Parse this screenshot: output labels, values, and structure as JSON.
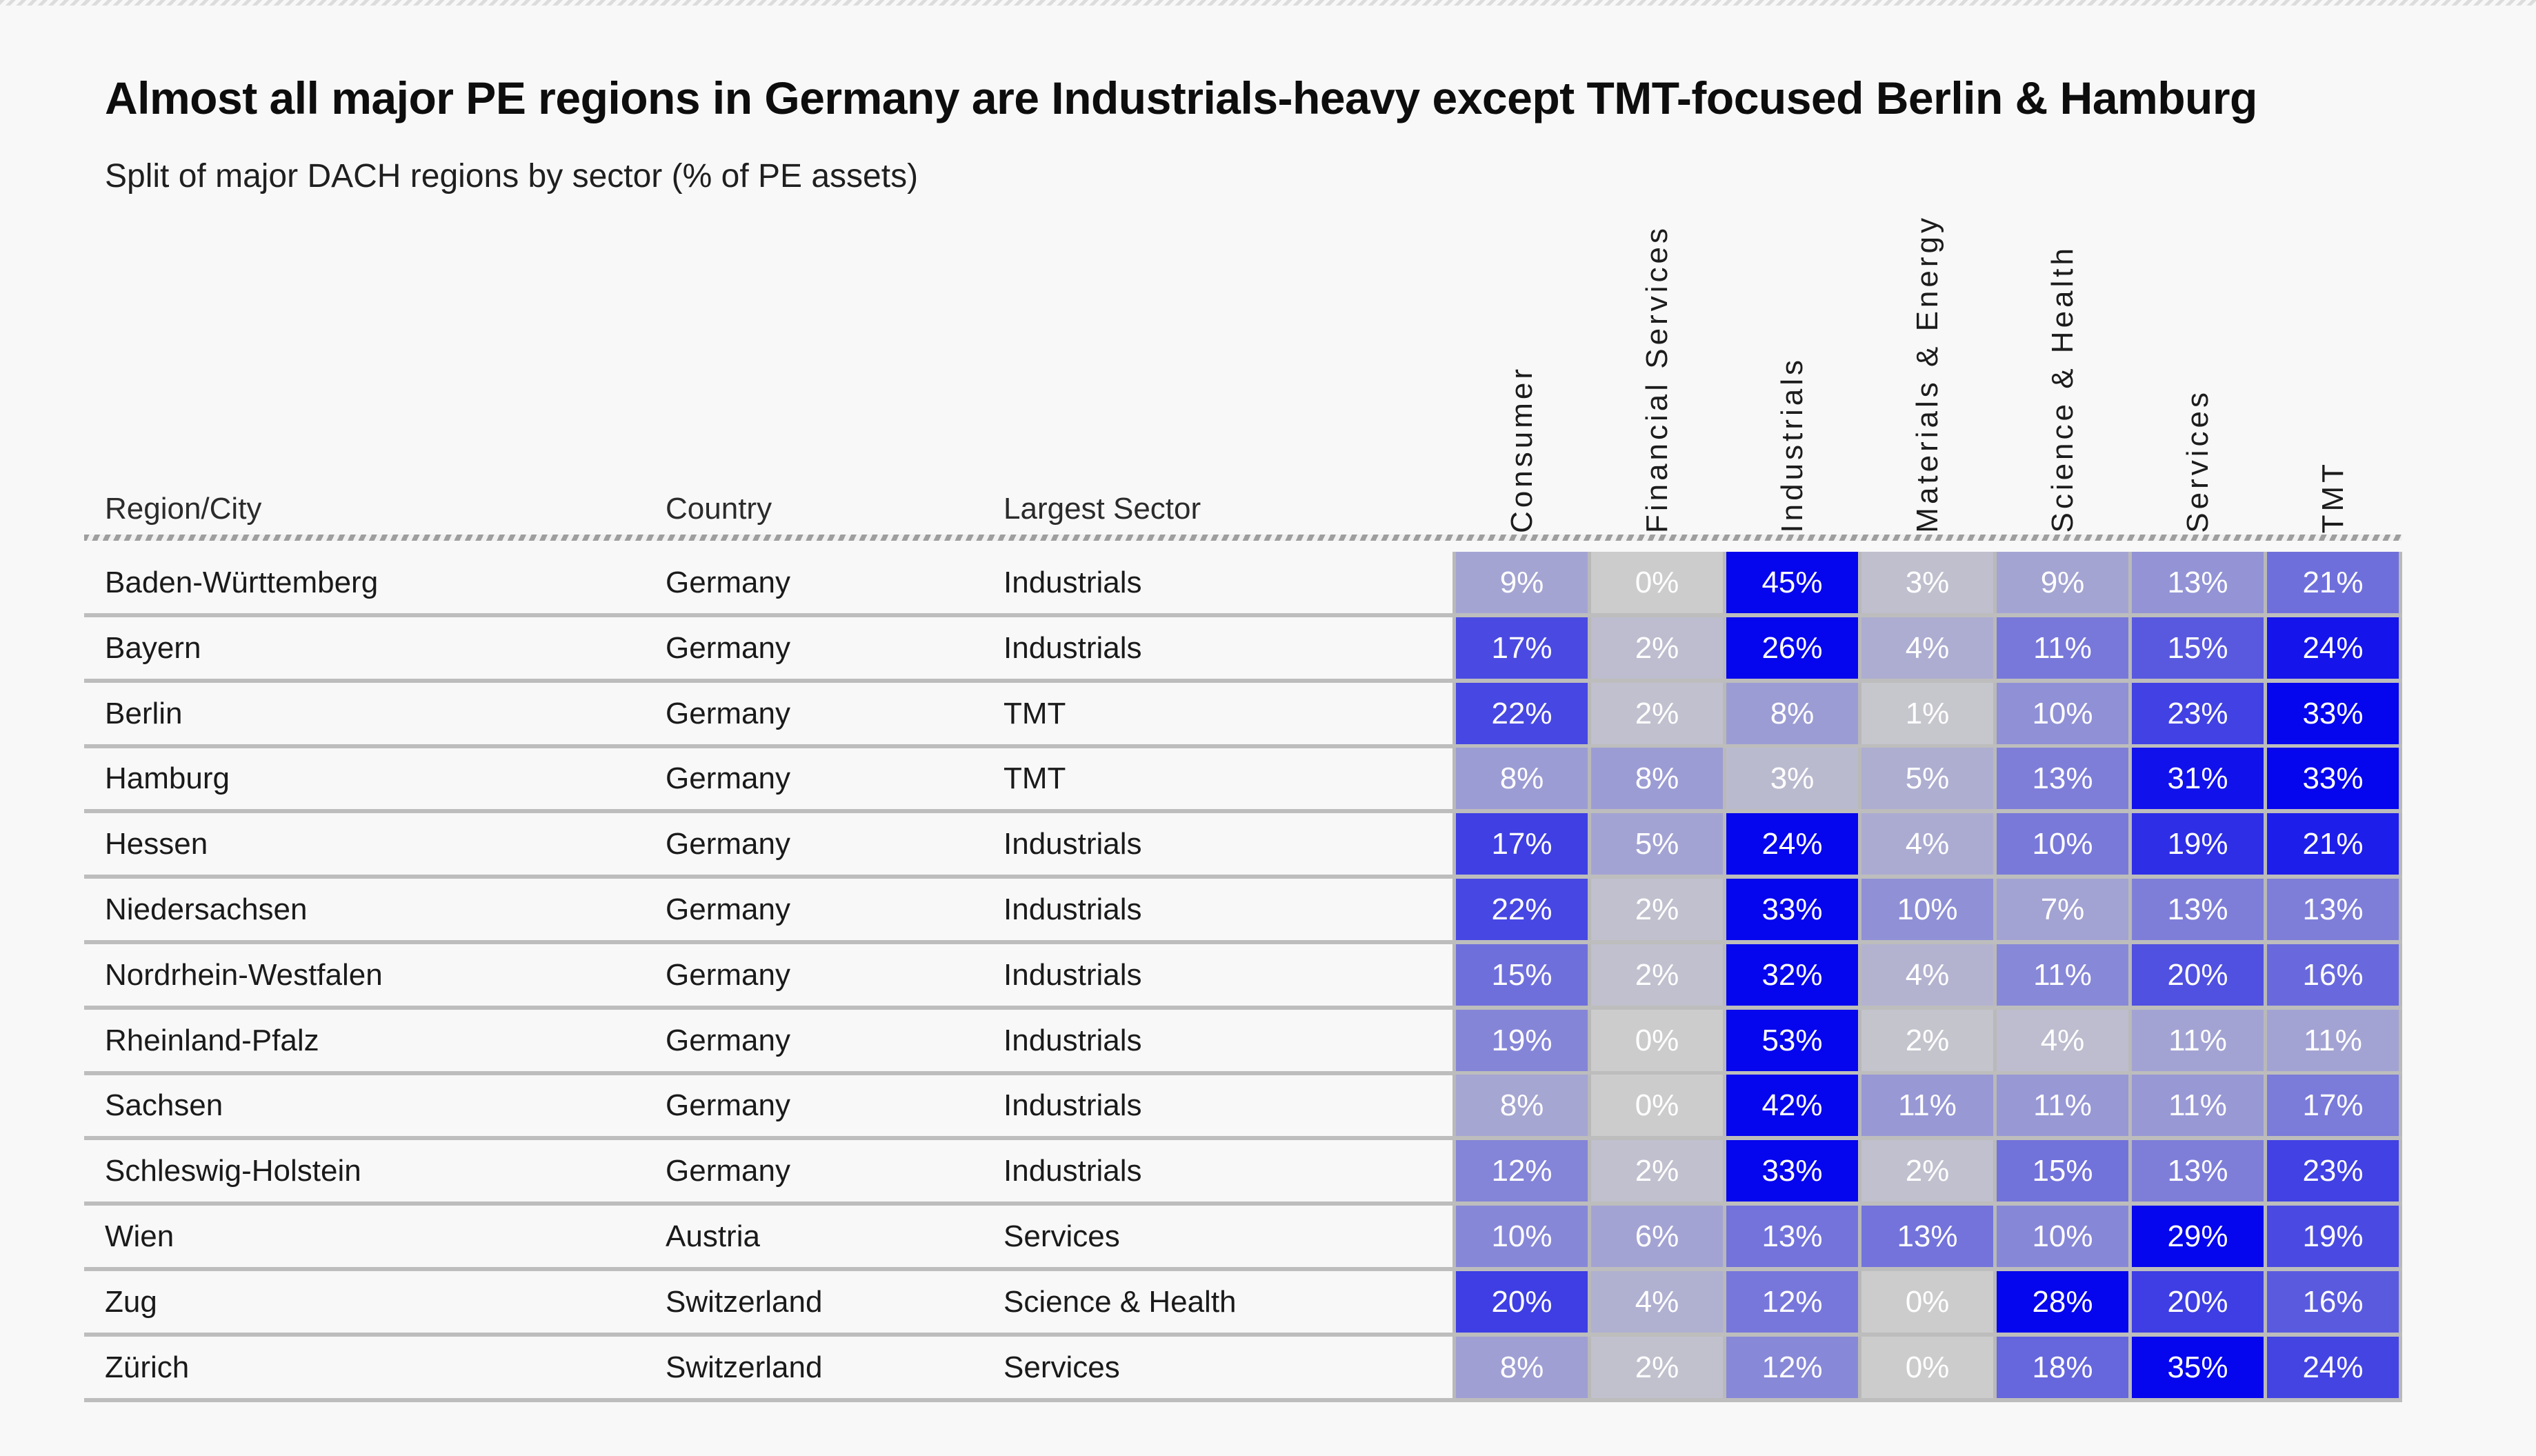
{
  "meta": {
    "title": "Almost all major PE regions in Germany are Industrials-heavy except TMT-focused Berlin & Hamburg",
    "subtitle": "Split of major DACH regions by sector (% of PE assets)"
  },
  "table": {
    "left_headers": [
      "Region/City",
      "Country",
      "Largest Sector"
    ],
    "sector_headers": [
      "Consumer",
      "Financial Services",
      "Industrials",
      "Materials & Energy",
      "Science & Health",
      "Services",
      "TMT"
    ]
  },
  "heatmap_style": {
    "low_color": "#cccccc",
    "high_color": "#0505ee",
    "cell_text_color": "#ffffff",
    "separator_color": "#bdbdbd",
    "scaling": "per-row: cell color intensity = value / row maximum"
  },
  "chart_data": {
    "type": "heatmap",
    "title": "Almost all major PE regions in Germany are Industrials-heavy except TMT-focused Berlin & Hamburg",
    "subtitle": "Split of major DACH regions by sector (% of PE assets)",
    "value_format": "percent",
    "columns": [
      "Consumer",
      "Financial Services",
      "Industrials",
      "Materials & Energy",
      "Science & Health",
      "Services",
      "TMT"
    ],
    "rows": [
      {
        "region": "Baden-Württemberg",
        "country": "Germany",
        "largest_sector": "Industrials",
        "values": [
          9,
          0,
          45,
          3,
          9,
          13,
          21
        ]
      },
      {
        "region": "Bayern",
        "country": "Germany",
        "largest_sector": "Industrials",
        "values": [
          17,
          2,
          26,
          4,
          11,
          15,
          24
        ]
      },
      {
        "region": "Berlin",
        "country": "Germany",
        "largest_sector": "TMT",
        "values": [
          22,
          2,
          8,
          1,
          10,
          23,
          33
        ]
      },
      {
        "region": "Hamburg",
        "country": "Germany",
        "largest_sector": "TMT",
        "values": [
          8,
          8,
          3,
          5,
          13,
          31,
          33
        ]
      },
      {
        "region": "Hessen",
        "country": "Germany",
        "largest_sector": "Industrials",
        "values": [
          17,
          5,
          24,
          4,
          10,
          19,
          21
        ]
      },
      {
        "region": "Niedersachsen",
        "country": "Germany",
        "largest_sector": "Industrials",
        "values": [
          22,
          2,
          33,
          10,
          7,
          13,
          13
        ]
      },
      {
        "region": "Nordrhein-Westfalen",
        "country": "Germany",
        "largest_sector": "Industrials",
        "values": [
          15,
          2,
          32,
          4,
          11,
          20,
          16
        ]
      },
      {
        "region": "Rheinland-Pfalz",
        "country": "Germany",
        "largest_sector": "Industrials",
        "values": [
          19,
          0,
          53,
          2,
          4,
          11,
          11
        ]
      },
      {
        "region": "Sachsen",
        "country": "Germany",
        "largest_sector": "Industrials",
        "values": [
          8,
          0,
          42,
          11,
          11,
          11,
          17
        ]
      },
      {
        "region": "Schleswig-Holstein",
        "country": "Germany",
        "largest_sector": "Industrials",
        "values": [
          12,
          2,
          33,
          2,
          15,
          13,
          23
        ]
      },
      {
        "region": "Wien",
        "country": "Austria",
        "largest_sector": "Services",
        "values": [
          10,
          6,
          13,
          13,
          10,
          29,
          19
        ]
      },
      {
        "region": "Zug",
        "country": "Switzerland",
        "largest_sector": "Science & Health",
        "values": [
          20,
          4,
          12,
          0,
          28,
          20,
          16
        ]
      },
      {
        "region": "Zürich",
        "country": "Switzerland",
        "largest_sector": "Services",
        "values": [
          8,
          2,
          12,
          0,
          18,
          35,
          24
        ]
      }
    ]
  }
}
